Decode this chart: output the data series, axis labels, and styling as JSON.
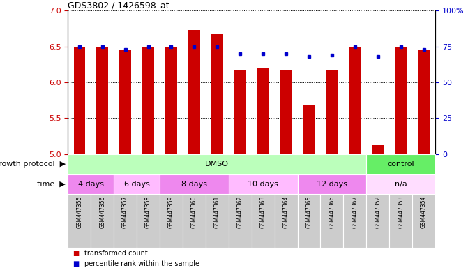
{
  "title": "GDS3802 / 1426598_at",
  "samples": [
    "GSM447355",
    "GSM447356",
    "GSM447357",
    "GSM447358",
    "GSM447359",
    "GSM447360",
    "GSM447361",
    "GSM447362",
    "GSM447363",
    "GSM447364",
    "GSM447365",
    "GSM447366",
    "GSM447367",
    "GSM447352",
    "GSM447353",
    "GSM447354"
  ],
  "bar_values": [
    6.5,
    6.5,
    6.45,
    6.5,
    6.5,
    6.73,
    6.68,
    6.18,
    6.2,
    6.18,
    5.68,
    6.18,
    6.5,
    5.12,
    6.5,
    6.45
  ],
  "dot_values": [
    75,
    75,
    73,
    75,
    75,
    75,
    75,
    70,
    70,
    70,
    68,
    69,
    75,
    68,
    75,
    73
  ],
  "ylim_left": [
    5,
    7
  ],
  "ylim_right": [
    0,
    100
  ],
  "yticks_left": [
    5,
    5.5,
    6,
    6.5,
    7
  ],
  "yticks_right": [
    0,
    25,
    50,
    75,
    100
  ],
  "bar_color": "#CC0000",
  "dot_color": "#0000CC",
  "bar_width": 0.5,
  "growth_protocol_groups": [
    {
      "label": "DMSO",
      "start": 0,
      "end": 13,
      "color": "#bbffbb"
    },
    {
      "label": "control",
      "start": 13,
      "end": 16,
      "color": "#66ee66"
    }
  ],
  "time_groups": [
    {
      "label": "4 days",
      "start": 0,
      "end": 2,
      "color": "#ee88ee"
    },
    {
      "label": "6 days",
      "start": 2,
      "end": 4,
      "color": "#ffbbff"
    },
    {
      "label": "8 days",
      "start": 4,
      "end": 7,
      "color": "#ee88ee"
    },
    {
      "label": "10 days",
      "start": 7,
      "end": 10,
      "color": "#ffbbff"
    },
    {
      "label": "12 days",
      "start": 10,
      "end": 13,
      "color": "#ee88ee"
    },
    {
      "label": "n/a",
      "start": 13,
      "end": 16,
      "color": "#ffddff"
    }
  ],
  "legend_items": [
    {
      "label": "transformed count",
      "color": "#CC0000"
    },
    {
      "label": "percentile rank within the sample",
      "color": "#0000CC"
    }
  ],
  "xlabel_growth": "growth protocol",
  "xlabel_time": "time",
  "background_color": "#ffffff",
  "sample_bg_color": "#cccccc",
  "base_value": 5
}
